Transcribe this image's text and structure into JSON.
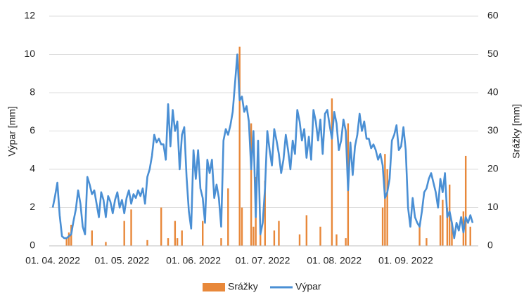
{
  "chart_data": {
    "type": "combo",
    "categories": [
      "01. 04. 2022",
      null,
      null,
      null,
      null,
      null,
      null,
      null,
      null,
      null,
      null,
      null,
      null,
      null,
      null,
      null,
      null,
      null,
      null,
      null,
      null,
      null,
      null,
      null,
      null,
      null,
      null,
      null,
      null,
      null,
      "01. 05. 2022",
      null,
      null,
      null,
      null,
      null,
      null,
      null,
      null,
      null,
      null,
      null,
      null,
      null,
      null,
      null,
      null,
      null,
      null,
      null,
      null,
      null,
      null,
      null,
      null,
      null,
      null,
      null,
      null,
      null,
      null,
      "01. 06. 2022",
      null,
      null,
      null,
      null,
      null,
      null,
      null,
      null,
      null,
      null,
      null,
      null,
      null,
      null,
      null,
      null,
      null,
      null,
      null,
      null,
      null,
      null,
      null,
      null,
      null,
      null,
      null,
      null,
      null,
      "01. 07. 2022",
      null,
      null,
      null,
      null,
      null,
      null,
      null,
      null,
      null,
      null,
      null,
      null,
      null,
      null,
      null,
      null,
      null,
      null,
      null,
      null,
      null,
      null,
      null,
      null,
      null,
      null,
      null,
      null,
      null,
      null,
      "01. 08. 2022",
      null,
      null,
      null,
      null,
      null,
      null,
      null,
      null,
      null,
      null,
      null,
      null,
      null,
      null,
      null,
      null,
      null,
      null,
      null,
      null,
      null,
      null,
      null,
      null,
      null,
      null,
      null,
      null,
      null,
      null,
      "01. 09. 2022",
      null,
      null,
      null,
      null,
      null,
      null,
      null,
      null,
      null,
      null,
      null,
      null,
      null,
      null,
      null,
      null,
      null,
      null,
      null,
      null,
      null,
      null,
      null,
      null,
      null,
      null,
      null,
      null,
      null
    ],
    "series": [
      {
        "name": "Srážky",
        "type": "bar",
        "axis": "y2",
        "color": "#e8883a",
        "values": [
          0,
          0,
          0,
          0,
          0,
          0,
          2,
          3.5,
          5.5,
          0,
          0,
          0,
          0,
          0,
          0,
          0,
          0,
          4,
          0,
          0,
          0,
          0,
          0,
          1,
          0,
          0,
          0,
          0,
          0,
          0,
          0,
          6.5,
          0,
          0,
          9.5,
          0,
          0,
          0,
          0,
          0,
          0,
          1.5,
          0,
          0,
          0,
          0,
          0,
          10,
          0,
          0,
          2,
          0,
          0,
          6.5,
          2,
          0,
          4,
          0,
          0,
          0,
          0,
          0,
          0,
          0,
          0,
          6.5,
          0,
          0,
          0,
          0,
          0,
          0,
          0,
          2,
          0,
          0,
          15,
          0,
          0,
          0,
          0,
          52,
          10,
          0,
          0,
          0,
          32,
          5,
          18,
          0,
          5,
          0,
          17,
          0,
          0,
          0,
          4,
          0,
          6.5,
          0,
          0,
          0,
          0,
          0,
          0,
          0,
          0,
          3,
          0,
          0,
          8,
          0,
          0,
          0,
          0,
          0,
          5,
          0,
          0,
          0,
          0,
          38.5,
          0,
          3,
          0,
          0,
          0,
          2,
          32,
          0,
          0,
          0,
          0,
          0,
          0,
          0,
          0,
          0,
          0,
          0,
          0,
          0,
          0,
          10,
          24,
          20,
          0,
          0,
          0,
          0,
          0,
          0,
          0,
          0,
          0,
          0,
          0,
          0,
          0,
          5,
          0,
          0,
          2,
          0,
          0,
          0,
          0,
          0,
          8,
          12,
          0,
          10,
          16,
          6,
          0,
          0,
          0,
          0,
          9,
          23.5,
          0,
          5,
          0
        ]
      },
      {
        "name": "Výpar",
        "type": "line",
        "color": "#4a8fd4",
        "values": [
          2.0,
          2.6,
          3.3,
          1.6,
          0.5,
          0.4,
          0.4,
          0.5,
          0.6,
          1.3,
          1.9,
          2.9,
          2.2,
          1.0,
          0.6,
          3.6,
          3.2,
          2.7,
          2.9,
          2.2,
          1.5,
          2.8,
          2.4,
          1.5,
          2.6,
          2.3,
          1.7,
          2.4,
          2.8,
          2.0,
          2.4,
          1.7,
          2.5,
          2.9,
          2.2,
          2.7,
          2.5,
          2.9,
          2.6,
          3.0,
          2.2,
          3.6,
          4.0,
          4.7,
          5.8,
          5.4,
          5.6,
          5.3,
          5.3,
          4.5,
          7.4,
          5.2,
          7.1,
          6.0,
          6.5,
          4.0,
          5.8,
          6.2,
          3.6,
          1.8,
          0.9,
          5.0,
          3.5,
          5.0,
          3.0,
          2.5,
          1.2,
          4.5,
          3.8,
          4.5,
          2.5,
          3.2,
          2.5,
          1.0,
          5.5,
          6.1,
          5.8,
          6.3,
          7.0,
          8.5,
          10.0,
          7.6,
          7.8,
          7.0,
          7.3,
          6.5,
          4.0,
          6.0,
          1.5,
          5.5,
          0.6,
          1.2,
          3.0,
          6.0,
          5.0,
          4.2,
          6.1,
          5.5,
          4.8,
          3.8,
          4.5,
          5.8,
          5.0,
          4.0,
          5.5,
          4.8,
          7.1,
          6.5,
          5.5,
          6.1,
          4.6,
          5.7,
          4.5,
          7.1,
          6.5,
          5.5,
          6.6,
          4.8,
          6.9,
          7.1,
          6.3,
          5.6,
          7.0,
          6.4,
          5.0,
          5.5,
          6.6,
          6.0,
          2.9,
          5.4,
          3.7,
          5.2,
          5.8,
          6.9,
          6.0,
          6.5,
          5.6,
          5.6,
          5.1,
          5.3,
          5.0,
          4.5,
          4.8,
          4.2,
          2.5,
          2.8,
          3.5,
          5.5,
          5.8,
          6.3,
          5.0,
          5.2,
          6.2,
          5.0,
          2.0,
          1.0,
          2.5,
          1.5,
          1.2,
          1.0,
          1.8,
          2.8,
          3.0,
          3.5,
          3.8,
          3.3,
          2.8,
          2.0,
          3.5,
          2.8,
          3.8,
          1.5,
          1.8,
          1.2,
          0.4,
          1.2,
          0.8,
          1.5,
          0.7,
          1.5,
          1.2,
          1.6,
          1.2
        ]
      }
    ],
    "y_label": "Výpar [mm]",
    "y2_label": "Srážky [mm]",
    "ylim": [
      0,
      12
    ],
    "yticks": [
      0,
      2,
      4,
      6,
      8,
      10,
      12
    ],
    "y2lim": [
      0,
      60
    ],
    "y2ticks": [
      0,
      10,
      20,
      30,
      40,
      50,
      60
    ],
    "grid": true,
    "legend": "bottom"
  }
}
